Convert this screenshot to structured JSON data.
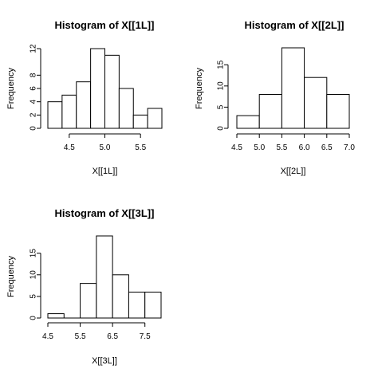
{
  "chart_data": [
    {
      "type": "bar",
      "title": "Histogram of X[[1L]]",
      "xlabel": "X[[1L]]",
      "ylabel": "Frequency",
      "bins": [
        [
          4.2,
          4.4
        ],
        [
          4.4,
          4.6
        ],
        [
          4.6,
          4.8
        ],
        [
          4.8,
          5.0
        ],
        [
          5.0,
          5.2
        ],
        [
          5.2,
          5.4
        ],
        [
          5.4,
          5.6
        ],
        [
          5.6,
          5.8
        ]
      ],
      "values": [
        4,
        5,
        7,
        12,
        11,
        6,
        2,
        3
      ],
      "xticks": [
        "4.5",
        "5.0",
        "5.5"
      ],
      "xtick_values": [
        4.5,
        5.0,
        5.5
      ],
      "yticks": [
        "0",
        "2",
        "4",
        "6",
        "8",
        "12"
      ],
      "ytick_values": [
        0,
        2,
        4,
        6,
        8,
        12
      ],
      "ylim": [
        0,
        12
      ]
    },
    {
      "type": "bar",
      "title": "Histogram of X[[2L]]",
      "xlabel": "X[[2L]]",
      "ylabel": "Frequency",
      "bins": [
        [
          4.5,
          5.0
        ],
        [
          5.0,
          5.5
        ],
        [
          5.5,
          6.0
        ],
        [
          6.0,
          6.5
        ],
        [
          6.5,
          7.0
        ]
      ],
      "values": [
        3,
        8,
        19,
        12,
        8
      ],
      "xticks": [
        "4.5",
        "5.0",
        "5.5",
        "6.0",
        "6.5",
        "7.0"
      ],
      "xtick_values": [
        4.5,
        5.0,
        5.5,
        6.0,
        6.5,
        7.0
      ],
      "yticks": [
        "0",
        "5",
        "10",
        "15"
      ],
      "ytick_values": [
        0,
        5,
        10,
        15
      ],
      "ylim": [
        0,
        19
      ]
    },
    {
      "type": "bar",
      "title": "Histogram of X[[3L]]",
      "xlabel": "X[[3L]]",
      "ylabel": "Frequency",
      "bins": [
        [
          4.5,
          5.0
        ],
        [
          5.0,
          5.5
        ],
        [
          5.5,
          6.0
        ],
        [
          6.0,
          6.5
        ],
        [
          6.5,
          7.0
        ],
        [
          7.0,
          7.5
        ],
        [
          7.5,
          8.0
        ]
      ],
      "values": [
        1,
        0,
        8,
        19,
        10,
        6,
        6
      ],
      "xticks": [
        "4.5",
        "5.5",
        "6.5",
        "7.5"
      ],
      "xtick_values": [
        4.5,
        5.5,
        6.5,
        7.5
      ],
      "yticks": [
        "0",
        "5",
        "10",
        "15"
      ],
      "ytick_values": [
        0,
        5,
        10,
        15
      ],
      "ylim": [
        0,
        19
      ]
    }
  ]
}
